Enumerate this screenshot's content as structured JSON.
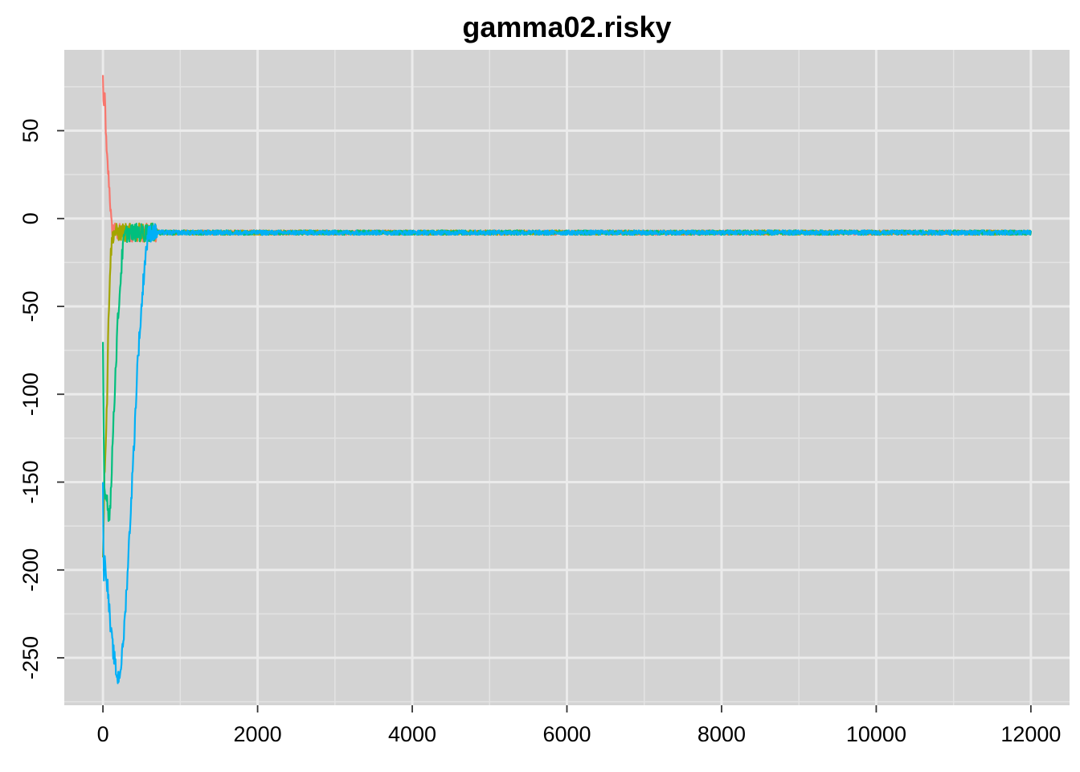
{
  "chart_data": {
    "type": "line",
    "title": "gamma02.risky",
    "xlabel": "",
    "ylabel": "",
    "xlim": [
      -500,
      12500
    ],
    "ylim": [
      -277,
      96
    ],
    "x_ticks": [
      0,
      2000,
      4000,
      6000,
      8000,
      10000,
      12000
    ],
    "x_tick_labels": [
      "0",
      "2000",
      "4000",
      "6000",
      "8000",
      "10000",
      "12000"
    ],
    "y_ticks": [
      -250,
      -200,
      -150,
      -100,
      -50,
      0,
      50
    ],
    "y_tick_labels": [
      "-250",
      "-200",
      "-150",
      "-100",
      "-50",
      "0",
      "50"
    ],
    "grid": true,
    "background": "#d3d3d3",
    "series": [
      {
        "color": "#f8766d",
        "noise": 1.3,
        "values": [
          [
            0,
            80
          ],
          [
            10,
            62
          ],
          [
            25,
            70
          ],
          [
            45,
            38
          ],
          [
            60,
            30
          ],
          [
            80,
            20
          ],
          [
            100,
            4
          ],
          [
            110,
            -5
          ],
          [
            150,
            -7
          ],
          [
            200,
            -8
          ],
          [
            300,
            -8
          ],
          [
            600,
            -8
          ],
          [
            12000,
            -8
          ]
        ]
      },
      {
        "color": "#a3a500",
        "noise": 1.3,
        "values": [
          [
            0,
            -190
          ],
          [
            20,
            -145
          ],
          [
            40,
            -120
          ],
          [
            55,
            -100
          ],
          [
            70,
            -60
          ],
          [
            90,
            -30
          ],
          [
            110,
            -15
          ],
          [
            130,
            -9
          ],
          [
            150,
            -8
          ],
          [
            200,
            -8
          ],
          [
            600,
            -8
          ],
          [
            12000,
            -8
          ]
        ]
      },
      {
        "color": "#00bf7d",
        "noise": 1.3,
        "values": [
          [
            0,
            -75
          ],
          [
            15,
            -150
          ],
          [
            30,
            -160
          ],
          [
            50,
            -155
          ],
          [
            70,
            -170
          ],
          [
            90,
            -165
          ],
          [
            110,
            -150
          ],
          [
            130,
            -120
          ],
          [
            160,
            -90
          ],
          [
            190,
            -60
          ],
          [
            220,
            -40
          ],
          [
            250,
            -20
          ],
          [
            280,
            -10
          ],
          [
            320,
            -8
          ],
          [
            400,
            -8
          ],
          [
            12000,
            -8
          ]
        ]
      },
      {
        "color": "#00b0f6",
        "noise": 1.3,
        "values": [
          [
            0,
            -150
          ],
          [
            10,
            -205
          ],
          [
            20,
            -195
          ],
          [
            40,
            -200
          ],
          [
            70,
            -215
          ],
          [
            100,
            -235
          ],
          [
            130,
            -245
          ],
          [
            160,
            -255
          ],
          [
            190,
            -262
          ],
          [
            220,
            -258
          ],
          [
            250,
            -248
          ],
          [
            280,
            -230
          ],
          [
            320,
            -200
          ],
          [
            360,
            -165
          ],
          [
            400,
            -130
          ],
          [
            450,
            -80
          ],
          [
            500,
            -50
          ],
          [
            540,
            -25
          ],
          [
            580,
            -10
          ],
          [
            620,
            -8
          ],
          [
            700,
            -8
          ],
          [
            12000,
            -8
          ]
        ]
      }
    ]
  }
}
